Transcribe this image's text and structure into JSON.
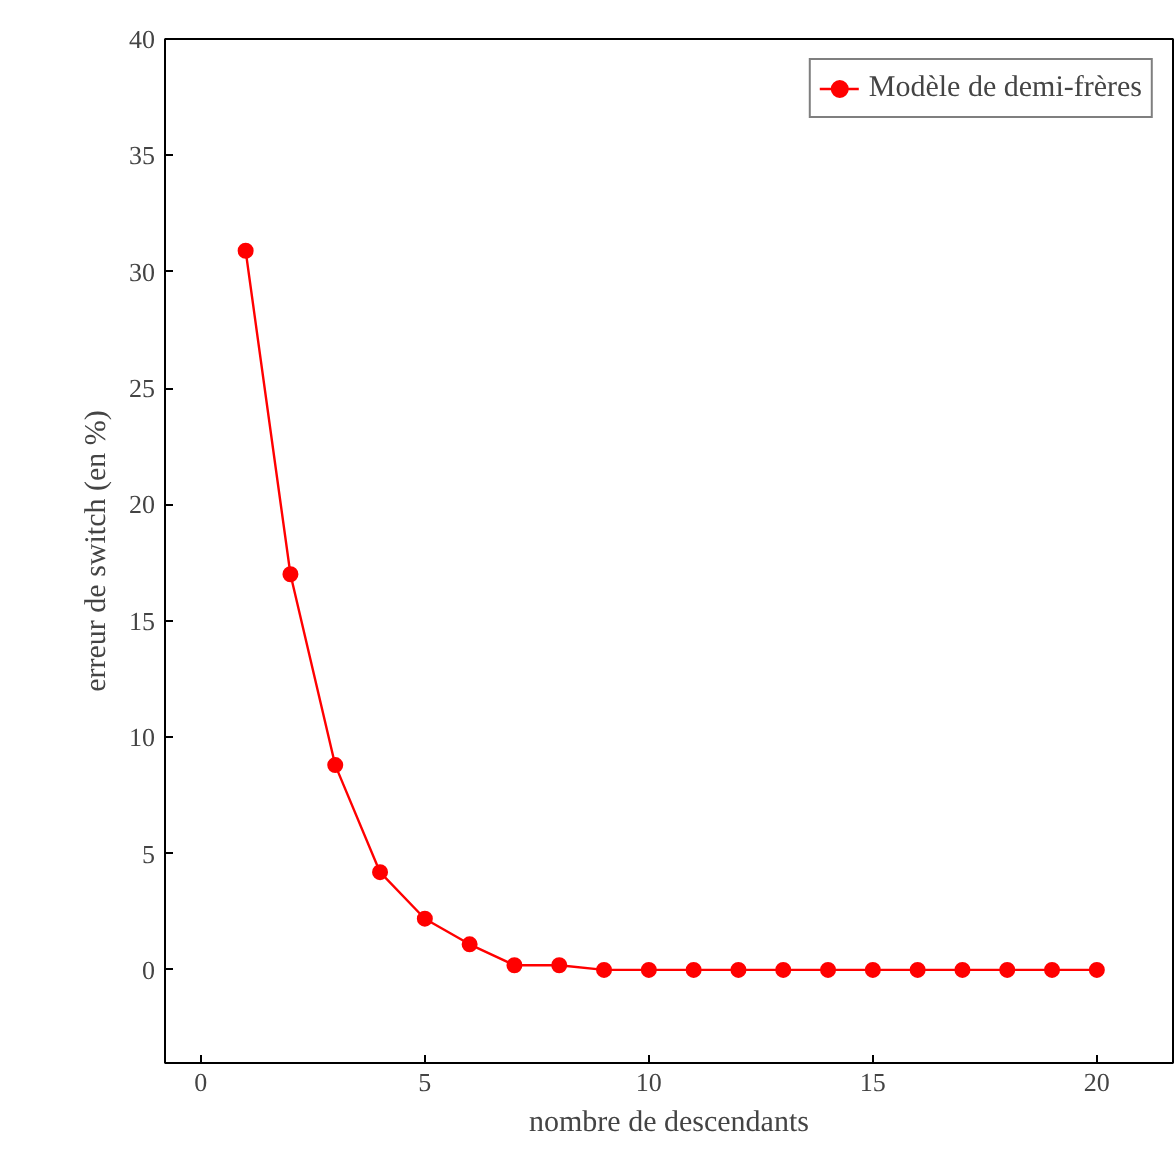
{
  "chart_data": {
    "type": "line",
    "xlabel": "nombre de descendants",
    "ylabel": "erreur de switch (en %)",
    "x": [
      1,
      2,
      3,
      4,
      5,
      6,
      7,
      8,
      9,
      10,
      11,
      12,
      13,
      14,
      15,
      16,
      17,
      18,
      19,
      20
    ],
    "series": [
      {
        "name": "Modèle de demi-frères",
        "color": "#ff0000",
        "values": [
          30.9,
          17.0,
          8.8,
          4.2,
          2.2,
          1.1,
          0.2,
          0.2,
          0,
          0,
          0,
          0,
          0,
          0,
          0,
          0,
          0,
          0,
          0,
          0
        ]
      }
    ],
    "xlim": [
      -0.8,
      21.7
    ],
    "ylim": [
      -4,
      40
    ],
    "xticks": [
      0,
      5,
      10,
      15,
      20
    ],
    "yticks": [
      0,
      5,
      10,
      15,
      20,
      25,
      30,
      35,
      40
    ],
    "grid": false,
    "legend": "top right",
    "marker": "circle",
    "line_style": "solid"
  }
}
